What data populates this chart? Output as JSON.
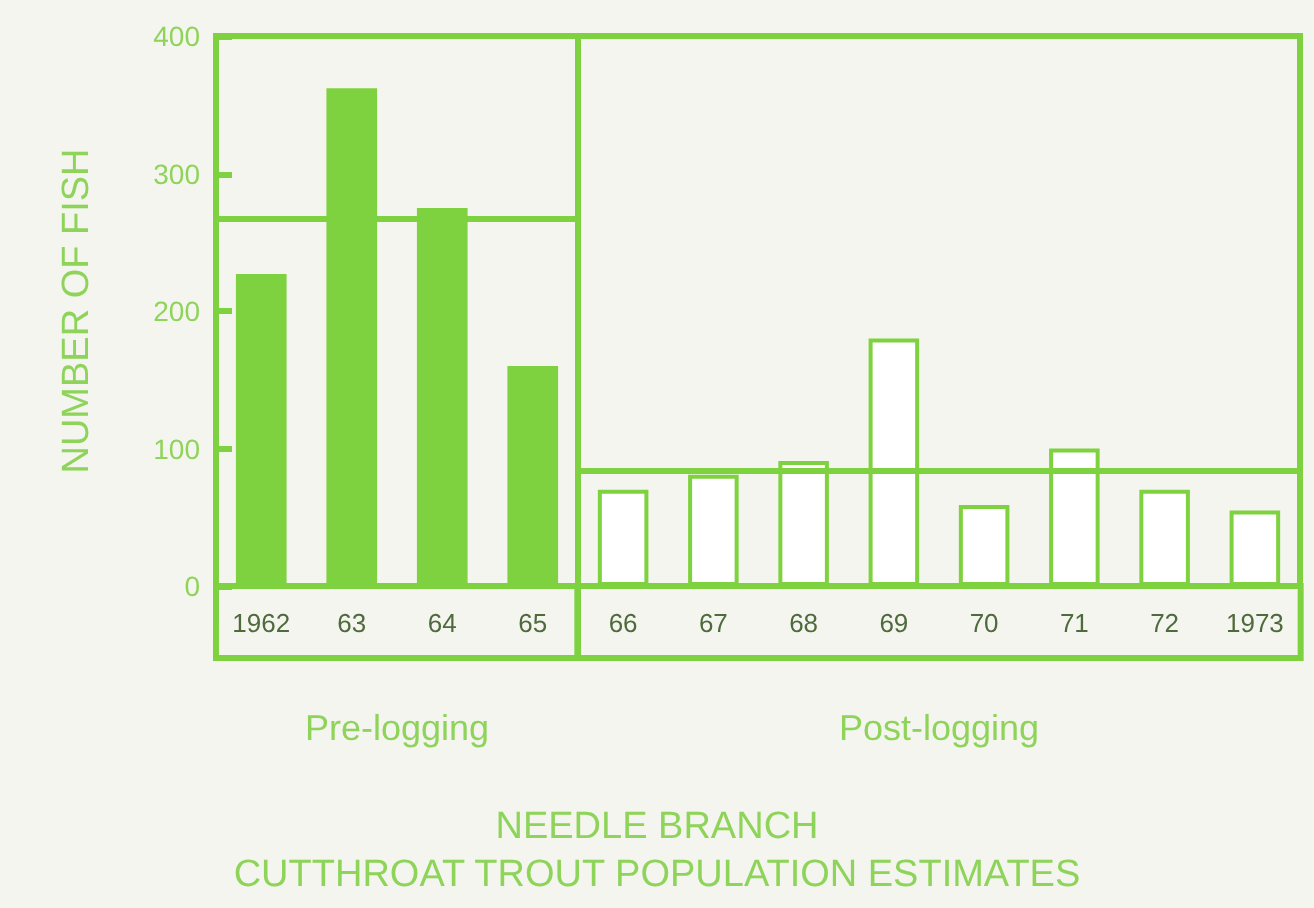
{
  "chart_data": [
    {
      "type": "bar",
      "title": "NEEDLE BRANCH\nCUTTHROAT TROUT POPULATION ESTIMATES",
      "ylabel": "NUMBER OF FISH",
      "xlabel": "Pre-logging",
      "categories": [
        "1962",
        "63",
        "64",
        "65"
      ],
      "series": [
        {
          "color": "#7fd23f",
          "values": [
            227,
            362,
            275,
            160
          ]
        }
      ],
      "ylim": [
        0,
        400
      ],
      "yticks": [
        0,
        100,
        200,
        300,
        400
      ],
      "ref_lines": [
        {
          "axis": "y",
          "value": 268,
          "color": "#7fd23f"
        }
      ],
      "grid": false
    },
    {
      "type": "bar",
      "xlabel": "Post-logging",
      "categories": [
        "66",
        "67",
        "68",
        "69",
        "70",
        "71",
        "72",
        "1973"
      ],
      "series": [
        {
          "color": "#7fd23f",
          "values": [
            70,
            81,
            91,
            180,
            59,
            100,
            70,
            55
          ]
        }
      ],
      "ylim": [
        0,
        400
      ],
      "yticks": [
        0,
        100,
        200,
        300,
        400
      ],
      "ref_lines": [
        {
          "axis": "y",
          "value": 84,
          "color": "#7fd23f"
        }
      ],
      "tick_labels": "x",
      "grid": false
    }
  ]
}
